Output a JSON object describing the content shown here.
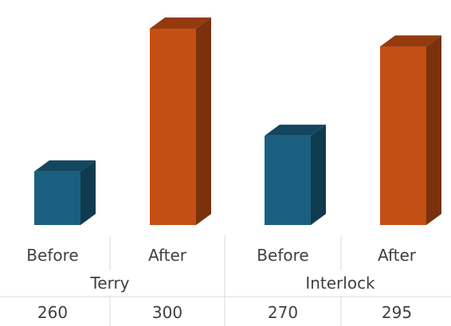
{
  "chart_data": {
    "type": "bar",
    "style": "3d-column",
    "groups": [
      {
        "label": "Terry",
        "categories": [
          "Before",
          "After"
        ]
      },
      {
        "label": "Interlock",
        "categories": [
          "Before",
          "After"
        ]
      }
    ],
    "categories": [
      "Before",
      "After",
      "Before",
      "After"
    ],
    "values": [
      260,
      300,
      270,
      295
    ],
    "colors": [
      "#1a5f7f",
      "#c44f14",
      "#1a5f7f",
      "#c44f14"
    ],
    "ylim": [
      245,
      302
    ],
    "title": "",
    "xlabel": "",
    "ylabel": "",
    "grid": false,
    "legend": false
  }
}
